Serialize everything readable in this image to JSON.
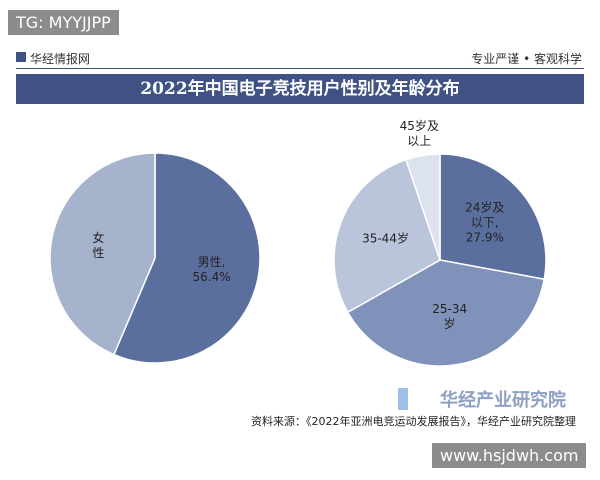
{
  "watermark_top": "TG: MYYJJPP",
  "header": {
    "brand": "华经情报网",
    "slogan": "专业严谨 • 客观科学"
  },
  "title": "2022年中国电子竞技用户性别及年龄分布",
  "chart_data": [
    {
      "type": "pie",
      "categories": [
        "男性,",
        "女性"
      ],
      "values": [
        56.4,
        43.6
      ],
      "value_labels": [
        "56.4%",
        null
      ],
      "colors": [
        "#5b6f9f",
        "#a6b3cd"
      ]
    },
    {
      "type": "pie",
      "categories": [
        "24岁及以下,",
        "25-34岁",
        "35-44岁",
        "45岁及以上"
      ],
      "values": [
        27.9,
        38.9,
        28.0,
        5.2
      ],
      "value_labels": [
        "27.9%",
        null,
        null,
        null
      ],
      "colors": [
        "#5b6f9f",
        "#8192ba",
        "#bac4da",
        "#dce2ee"
      ]
    }
  ],
  "footer": {
    "source": "资料来源：《2022年亚洲电竞运动发展报告》，华经产业研究院整理",
    "logo": "华经产业研究院"
  },
  "watermark_bottom": "www.hsjdwh.com"
}
